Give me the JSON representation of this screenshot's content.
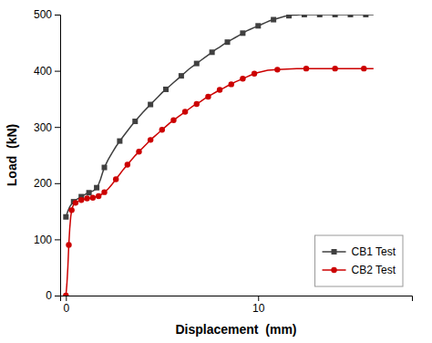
{
  "chart_data": {
    "type": "line",
    "xlabel": "Displacement  (mm)",
    "ylabel": "Load  (kN)",
    "xlim": [
      -0.3,
      18
    ],
    "ylim": [
      0,
      500
    ],
    "xticks": [
      0,
      10
    ],
    "yticks": [
      0,
      100,
      200,
      300,
      400,
      500
    ],
    "legend": "lower right",
    "series": [
      {
        "name": "CB1 Test",
        "color": "#404040",
        "marker": "square",
        "line_style": "solid",
        "x": [
          0.0,
          0.1,
          0.2,
          0.3,
          0.4,
          0.5,
          0.6,
          0.7,
          0.8,
          0.9,
          1.0,
          1.1,
          1.2,
          1.3,
          1.4,
          1.5,
          1.6,
          1.7,
          1.8,
          1.9,
          2.0,
          2.2,
          2.4,
          2.6,
          2.8,
          3.0,
          3.2,
          3.4,
          3.6,
          3.8,
          4.0,
          4.2,
          4.4,
          4.6,
          4.8,
          5.0,
          5.2,
          5.4,
          5.6,
          5.8,
          6.0,
          6.2,
          6.4,
          6.6,
          6.8,
          7.0,
          7.2,
          7.4,
          7.6,
          7.8,
          8.0,
          8.2,
          8.4,
          8.6,
          8.8,
          9.0,
          9.2,
          9.4,
          9.6,
          9.8,
          10.0,
          10.2,
          10.4,
          10.6,
          10.8,
          11.0,
          11.2,
          11.4,
          11.6,
          11.8,
          12.0,
          12.2,
          12.4,
          12.6,
          12.8,
          13.0,
          13.2,
          13.4,
          13.6,
          13.8,
          14.0,
          14.2,
          14.4,
          14.6,
          14.8,
          15.0,
          15.2,
          15.4,
          15.6,
          15.8,
          16.0
        ],
        "values": [
          140,
          150,
          158,
          163,
          167,
          170,
          172,
          174,
          176,
          178,
          180,
          182,
          183,
          185,
          186,
          188,
          192,
          198,
          207,
          218,
          228,
          242,
          254,
          265,
          275,
          284,
          293,
          302,
          310,
          318,
          326,
          333,
          340,
          347,
          354,
          361,
          367,
          373,
          379,
          385,
          391,
          397,
          403,
          408,
          413,
          418,
          423,
          428,
          433,
          438,
          442,
          447,
          451,
          455,
          459,
          463,
          467,
          471,
          474,
          477,
          480,
          483,
          486,
          489,
          491,
          493,
          495,
          497,
          498,
          499,
          499,
          500,
          500,
          500,
          500,
          500,
          500,
          500,
          500,
          500,
          500,
          500,
          500,
          500,
          500,
          500,
          500,
          500,
          500,
          500,
          500
        ]
      },
      {
        "name": "CB2 Test",
        "color": "#cc0000",
        "marker": "circle",
        "line_style": "solid",
        "x": [
          0.0,
          0.05,
          0.1,
          0.15,
          0.2,
          0.25,
          0.3,
          0.35,
          0.4,
          0.5,
          0.6,
          0.7,
          0.8,
          0.9,
          1.0,
          1.1,
          1.2,
          1.3,
          1.4,
          1.5,
          1.6,
          1.7,
          1.8,
          1.9,
          2.0,
          2.2,
          2.4,
          2.6,
          2.8,
          3.0,
          3.2,
          3.4,
          3.6,
          3.8,
          4.0,
          4.2,
          4.4,
          4.6,
          4.8,
          5.0,
          5.2,
          5.4,
          5.6,
          5.8,
          6.0,
          6.2,
          6.4,
          6.6,
          6.8,
          7.0,
          7.2,
          7.4,
          7.6,
          7.8,
          8.0,
          8.2,
          8.4,
          8.6,
          8.8,
          9.0,
          9.2,
          9.4,
          9.6,
          9.8,
          10.0,
          10.5,
          11.0,
          11.5,
          12.0,
          12.5,
          13.0,
          13.5,
          14.0,
          14.5,
          15.0,
          15.5,
          16.0
        ],
        "values": [
          0,
          20,
          50,
          90,
          120,
          140,
          152,
          158,
          162,
          165,
          167,
          169,
          170,
          171,
          172,
          173,
          173,
          174,
          174,
          175,
          176,
          177,
          179,
          181,
          184,
          190,
          198,
          207,
          216,
          225,
          233,
          241,
          249,
          256,
          263,
          270,
          277,
          283,
          289,
          295,
          301,
          307,
          312,
          317,
          322,
          327,
          332,
          337,
          341,
          345,
          350,
          354,
          358,
          362,
          366,
          369,
          373,
          376,
          380,
          383,
          386,
          389,
          392,
          395,
          397,
          401,
          402,
          403,
          404,
          404,
          404,
          404,
          404,
          404,
          404,
          404,
          404
        ]
      }
    ]
  }
}
